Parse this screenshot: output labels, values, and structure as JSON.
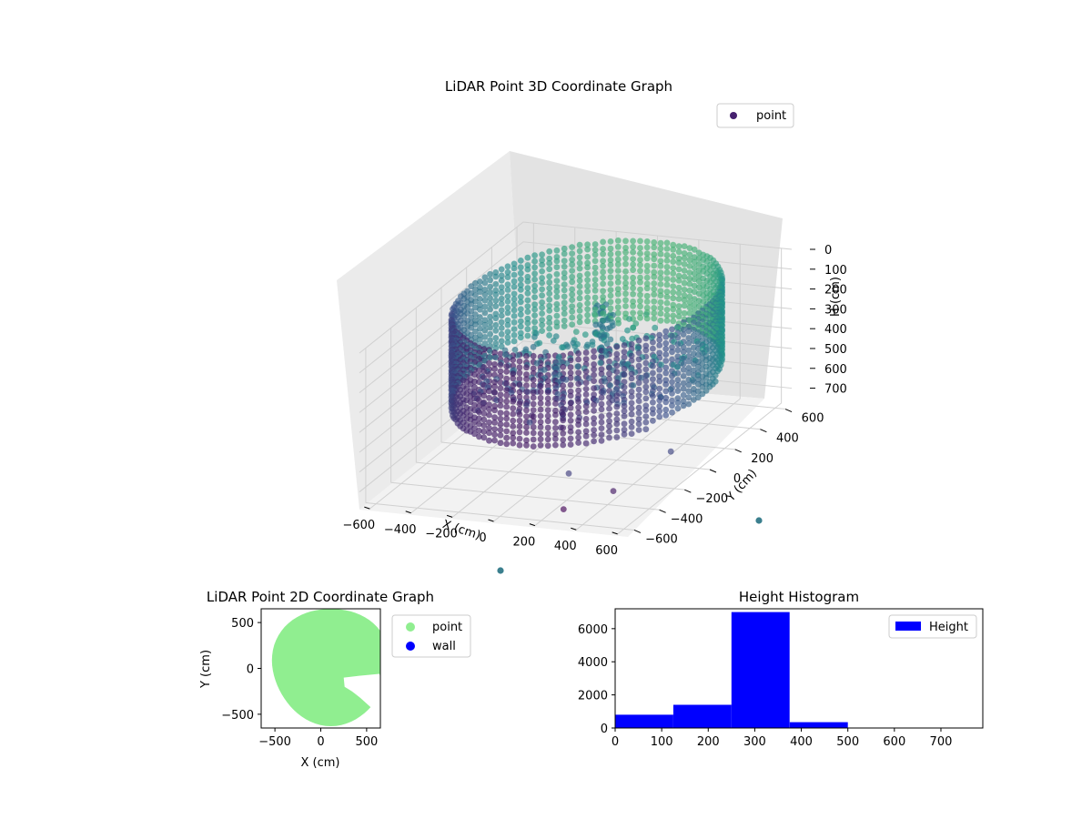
{
  "chart_data": [
    {
      "type": "scatter",
      "projection": "3d",
      "title": "LiDAR Point 3D Coordinate Graph",
      "xlabel": "X (cm)",
      "ylabel": "Y (cm)",
      "zlabel": "H (cm)",
      "xlim": [
        -650,
        650
      ],
      "ylim": [
        -650,
        650
      ],
      "zlim": [
        780,
        0
      ],
      "zaxis_inverted": true,
      "xticks": [
        "−600",
        "−400",
        "−200",
        "0",
        "200",
        "400",
        "600"
      ],
      "yticks": [
        "−600",
        "−400",
        "−200",
        "0",
        "200",
        "400",
        "600"
      ],
      "zticks": [
        "0",
        "100",
        "200",
        "300",
        "400",
        "500",
        "600",
        "700"
      ],
      "colormap": "viridis",
      "grid": true,
      "legend": {
        "position": "upper-right",
        "entries": [
          "point"
        ]
      },
      "series": [
        {
          "name": "point",
          "description_shape": "ring wall of points (radius ~600) from H≈0 to H≈400, with a vertical cluster near center and outlying points",
          "sample_points": [
            {
              "x": 600,
              "y": 0,
              "h": 100
            },
            {
              "x": 0,
              "y": 600,
              "h": 200
            },
            {
              "x": -600,
              "y": 0,
              "h": 300
            },
            {
              "x": 0,
              "y": -600,
              "h": 350
            },
            {
              "x": 50,
              "y": 50,
              "h": 250
            },
            {
              "x": 400,
              "y": -450,
              "h": 650
            },
            {
              "x": 100,
              "y": -200,
              "h": 700
            }
          ]
        }
      ]
    },
    {
      "type": "scatter",
      "title": "LiDAR Point 2D Coordinate Graph",
      "xlabel": "X (cm)",
      "ylabel": "Y (cm)",
      "xlim": [
        -650,
        650
      ],
      "ylim": [
        -650,
        650
      ],
      "xticks": [
        "−500",
        "0",
        "500"
      ],
      "yticks": [
        "500",
        "0",
        "−500"
      ],
      "legend": {
        "position": "outside-right",
        "entries": [
          "point",
          "wall"
        ]
      },
      "series": [
        {
          "name": "point",
          "color": "#90ee90",
          "shape": "filled disc radius ~620 centered near (80,0), with notch on right side"
        },
        {
          "name": "wall",
          "color": "#0000ff",
          "values": []
        }
      ]
    },
    {
      "type": "bar",
      "title": "Height Histogram",
      "xlabel": "",
      "ylabel": "",
      "xlim": [
        0,
        790
      ],
      "ylim": [
        0,
        7200
      ],
      "xticks": [
        "0",
        "100",
        "200",
        "300",
        "400",
        "500",
        "600",
        "700"
      ],
      "yticks": [
        "0",
        "2000",
        "4000",
        "6000"
      ],
      "bin_edges": [
        0,
        125,
        250,
        375,
        500,
        625,
        750
      ],
      "values": [
        800,
        1400,
        7000,
        350,
        0,
        0
      ],
      "color": "#0000ff",
      "legend": {
        "position": "upper-right",
        "entries": [
          "Height"
        ]
      }
    }
  ]
}
